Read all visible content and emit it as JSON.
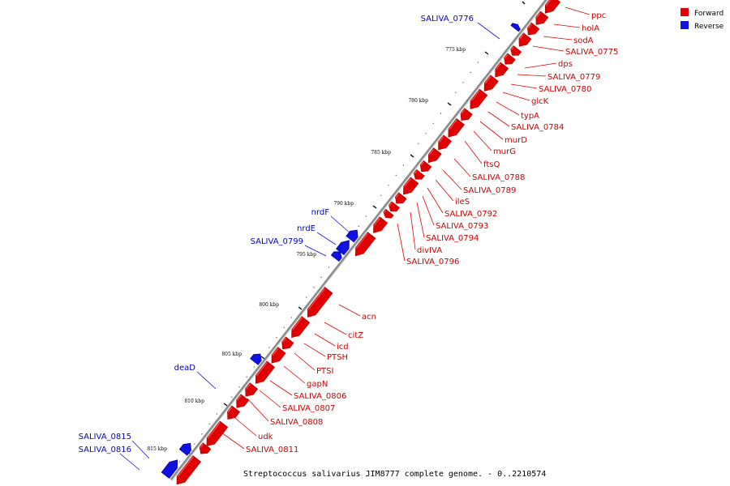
{
  "colors": {
    "forward": "#e00000",
    "forward_dark": "#b00000",
    "forward_label": "#cc0000",
    "reverse": "#1010e0",
    "reverse_dark": "#0000a0",
    "reverse_label": "#0000cc",
    "backbone": "#8a8a8a"
  },
  "legend": [
    {
      "name": "Forward",
      "color": "#e00000"
    },
    {
      "name": "Reverse",
      "color": "#1010e0"
    }
  ],
  "caption": "Streptococcus salivarius JIM8777 complete genome. - 0..2210574",
  "ticks": [
    "775 kbp",
    "780 kbp",
    "785 kbp",
    "790 kbp",
    "795 kbp",
    "800 kbp",
    "805 kbp",
    "810 kbp",
    "815 kbp"
  ],
  "forward_genes": [
    "ppc",
    "holA",
    "sodA",
    "SALIVA_0775",
    "dps",
    "SALIVA_0779",
    "SALIVA_0780",
    "glcK",
    "typA",
    "SALIVA_0784",
    "murD",
    "murG",
    "ftsQ",
    "SALIVA_0788",
    "SALIVA_0789",
    "ileS",
    "SALIVA_0792",
    "SALIVA_0793",
    "SALIVA_0794",
    "divIVA",
    "SALIVA_0796",
    "acn",
    "citZ",
    "icd",
    "PTSH",
    "PTSI",
    "gapN",
    "SALIVA_0806",
    "SALIVA_0807",
    "SALIVA_0808",
    "udk",
    "SALIVA_0811"
  ],
  "reverse_genes": [
    "SALIVA_0776",
    "nrdF",
    "nrdE",
    "SALIVA_0799",
    "deaD",
    "SALIVA_0815",
    "SALIVA_0816"
  ]
}
